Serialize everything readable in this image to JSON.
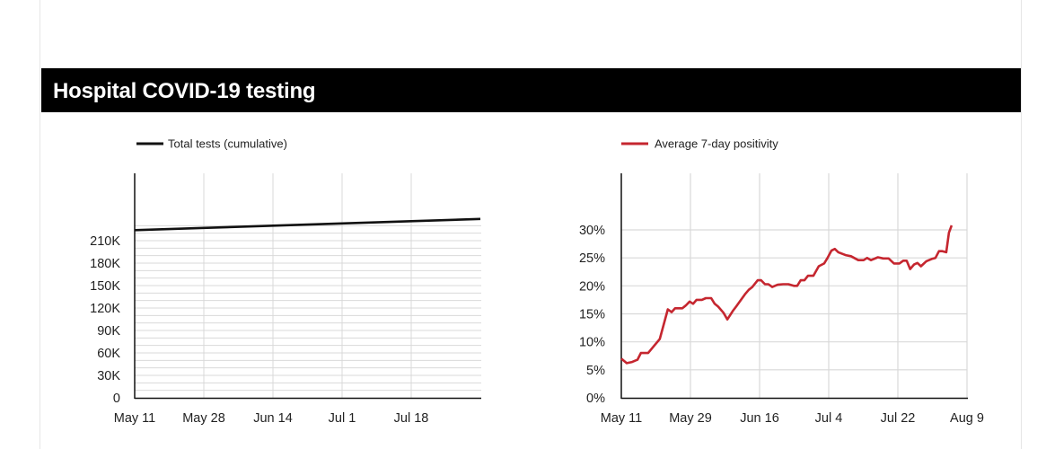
{
  "header": {
    "title": "Hospital COVID-19 testing"
  },
  "colors": {
    "header_bg": "#000000",
    "tests_line": "#111111",
    "positivity_line": "#c5262f",
    "grid": "#d9d9d9",
    "axis": "#111111",
    "text": "#222222"
  },
  "chart_data": [
    {
      "type": "line",
      "title": "",
      "legend": [
        "Total tests (cumulative)"
      ],
      "legend_position": "top",
      "xlabel": "",
      "ylabel": "",
      "x_tick_labels": [
        "May 11",
        "May 28",
        "Jun 14",
        "Jul 1",
        "Jul 18"
      ],
      "y_tick_labels": [
        "0",
        "30K",
        "60K",
        "90K",
        "120K",
        "150K",
        "180K",
        "210K"
      ],
      "ylim": [
        0,
        300000
      ],
      "grid": true,
      "series": [
        {
          "name": "Total tests (cumulative)",
          "color": "#111111",
          "x_days_from_may11": [
            0,
            17,
            34,
            51,
            68,
            85
          ],
          "values": [
            224000,
            227000,
            230000,
            233000,
            236000,
            239000
          ]
        }
      ]
    },
    {
      "type": "line",
      "title": "",
      "legend": [
        "Average 7-day positivity"
      ],
      "legend_position": "top",
      "xlabel": "",
      "ylabel": "",
      "x_tick_labels": [
        "May 11",
        "May 29",
        "Jun 16",
        "Jul 4",
        "Jul 22",
        "Aug 9"
      ],
      "y_tick_labels": [
        "0%",
        "5%",
        "10%",
        "15%",
        "20%",
        "25%",
        "30%"
      ],
      "ylim": [
        0,
        40
      ],
      "grid": true,
      "series": [
        {
          "name": "Average 7-day positivity",
          "color": "#c5262f",
          "x_days_from_may11": [
            0,
            1.4,
            2.8,
            4.2,
            5.1,
            7.0,
            8.9,
            10.0,
            11.2,
            12.1,
            13.1,
            14.0,
            15.9,
            16.8,
            17.8,
            18.7,
            19.6,
            21.0,
            22.0,
            23.4,
            24.3,
            25.2,
            26.6,
            27.6,
            29.0,
            29.9,
            29.9,
            32.2,
            33.2,
            34.1,
            35.5,
            36.4,
            37.4,
            38.3,
            39.3,
            40.7,
            42.1,
            43.5,
            44.9,
            45.8,
            46.7,
            47.7,
            48.6,
            50.0,
            51.4,
            52.8,
            53.7,
            54.7,
            55.6,
            56.5,
            58.4,
            59.8,
            61.7,
            63.1,
            64.0,
            65.0,
            66.8,
            68.2,
            69.6,
            71.0,
            72.4,
            73.4,
            74.3,
            75.2,
            76.2,
            77.1,
            78.0,
            79.4,
            80.8,
            81.8,
            82.7,
            83.6,
            84.6,
            85.3,
            86.0
          ],
          "values": [
            7.0,
            6.2,
            6.4,
            6.8,
            8.0,
            8.0,
            9.6,
            10.5,
            13.5,
            15.8,
            15.3,
            16.0,
            16.0,
            16.5,
            17.2,
            16.8,
            17.5,
            17.5,
            17.8,
            17.8,
            16.8,
            16.3,
            15.2,
            14.0,
            15.5,
            16.3,
            16.3,
            18.5,
            19.3,
            19.8,
            21.0,
            21.0,
            20.3,
            20.3,
            19.8,
            20.2,
            20.3,
            20.3,
            20.0,
            20.0,
            21.0,
            21.0,
            21.8,
            21.8,
            23.5,
            24.0,
            25.0,
            26.3,
            26.6,
            26.0,
            25.5,
            25.3,
            24.6,
            24.6,
            25.0,
            24.6,
            25.1,
            24.9,
            24.9,
            24.0,
            24.0,
            24.5,
            24.5,
            23.0,
            23.8,
            24.1,
            23.5,
            24.4,
            24.8,
            25.0,
            26.2,
            26.2,
            26.0,
            29.5,
            30.8
          ]
        }
      ]
    }
  ]
}
